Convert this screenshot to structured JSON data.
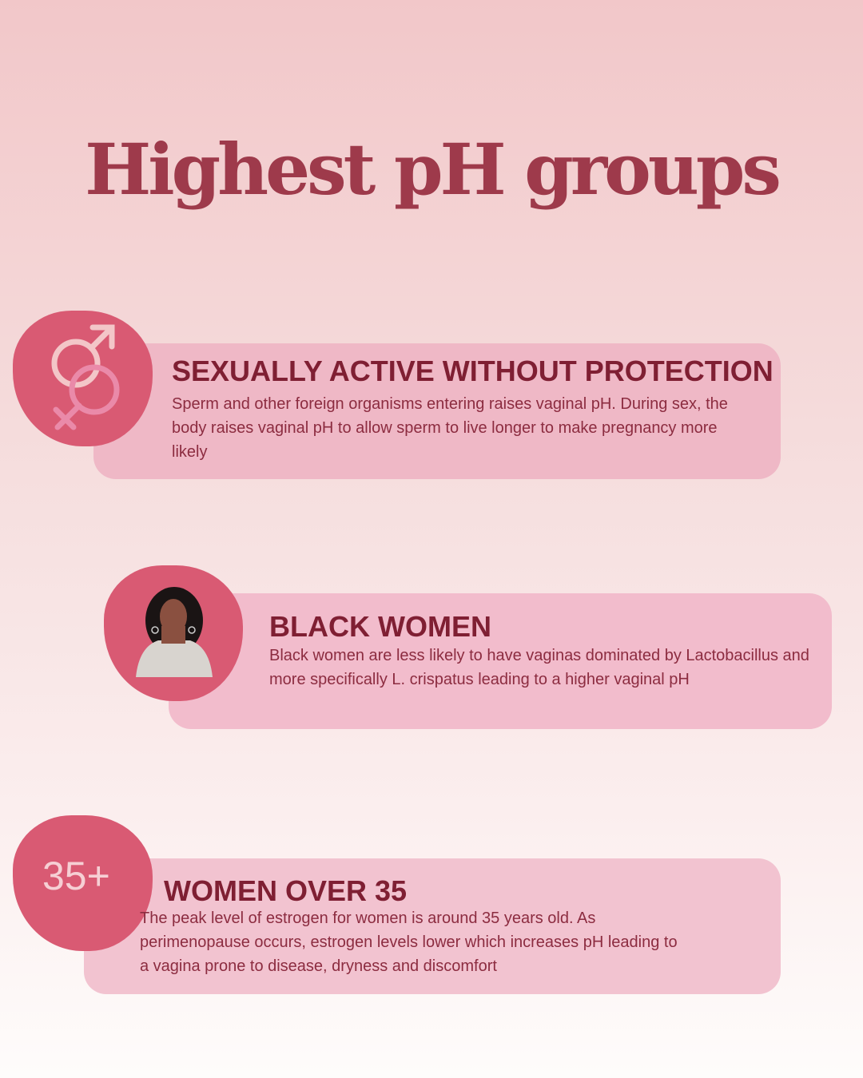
{
  "title": "Highest pH groups",
  "colors": {
    "accent": "#d95a73",
    "heading": "#7f1f33",
    "title": "#9e3a4b",
    "card": "#f0b9c7"
  },
  "items": [
    {
      "icon": "male-female-symbol-icon",
      "heading": "SEXUALLY ACTIVE WITHOUT PROTECTION",
      "body": "Sperm and other foreign organisms entering raises vaginal pH. During sex, the body raises vaginal pH to allow sperm to live longer to make pregnancy more likely"
    },
    {
      "icon": "black-woman-illustration-icon",
      "heading": "BLACK WOMEN",
      "body": "Black women are less likely to have vaginas dominated by Lactobacillus and more specifically L. crispatus leading to a higher vaginal pH"
    },
    {
      "icon": "age-badge",
      "badge": "35+",
      "heading": "WOMEN OVER 35",
      "body": "The peak level of estrogen for women is around 35 years old. As perimenopause occurs, estrogen levels lower which increases pH leading to a vagina prone to disease, dryness and discomfort"
    }
  ]
}
